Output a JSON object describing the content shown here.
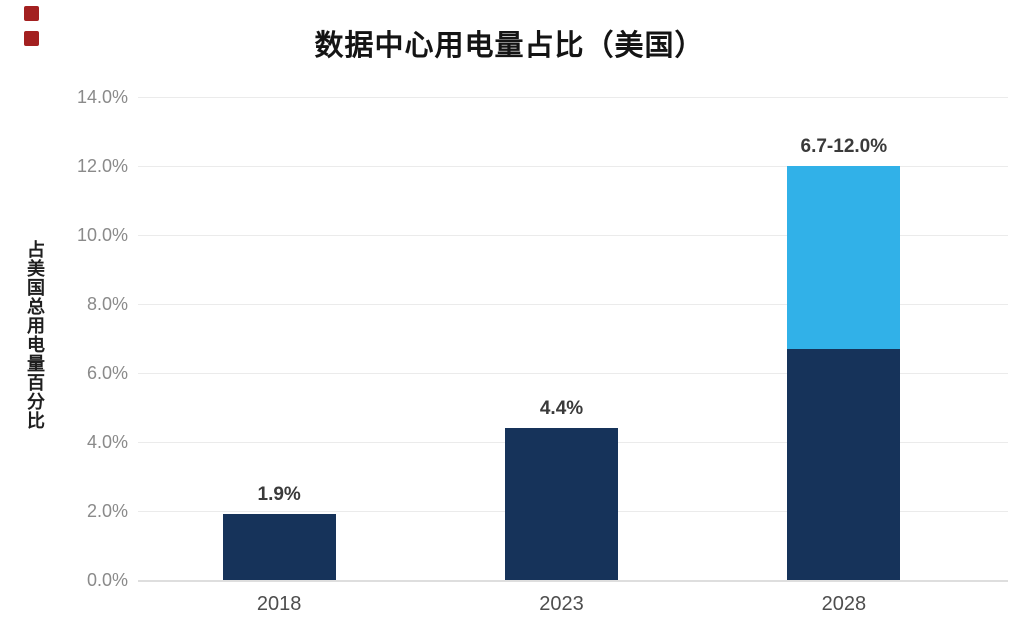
{
  "decorations": {
    "squares_color": "#a32020"
  },
  "chart_data": {
    "type": "bar",
    "title": "数据中心用电量占比（美国）",
    "xlabel": "",
    "ylabel": "占美国总用电量百分比",
    "categories": [
      "2018",
      "2023",
      "2028"
    ],
    "series": [
      {
        "name": "dark-navy-segment",
        "values": [
          1.9,
          4.4,
          6.7
        ],
        "color": "#16335a"
      },
      {
        "name": "light-blue-segment",
        "values": [
          0,
          0,
          5.3
        ],
        "color": "#31b1e8"
      }
    ],
    "bar_labels": [
      "1.9%",
      "4.4%",
      "6.7-12.0%"
    ],
    "ylim": [
      0,
      14
    ],
    "ytick_values": [
      0,
      2,
      4,
      6,
      8,
      10,
      12,
      14
    ],
    "yticks": [
      "0.0%",
      "2.0%",
      "4.0%",
      "6.0%",
      "8.0%",
      "10.0%",
      "12.0%",
      "14.0%"
    ],
    "grid": true,
    "legend": "none"
  }
}
